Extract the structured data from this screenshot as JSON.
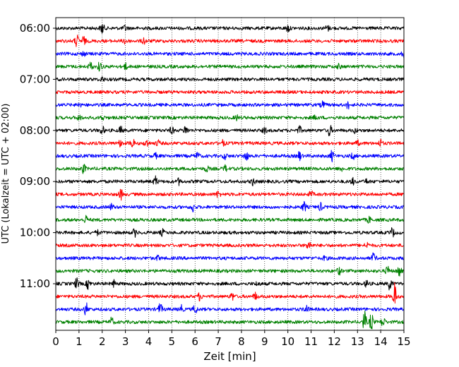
{
  "chart_data": {
    "type": "line",
    "title": "",
    "xlabel": "Zeit  [min]",
    "ylabel": "UTC (Lokalzeit = UTC + 02:00)",
    "xlim": [
      0,
      15
    ],
    "x_ticks": [
      "0",
      "1",
      "2",
      "3",
      "4",
      "5",
      "6",
      "7",
      "8",
      "9",
      "10",
      "11",
      "12",
      "13",
      "14",
      "15"
    ],
    "y_ticks": [
      "06:00",
      "07:00",
      "08:00",
      "09:00",
      "10:00",
      "11:00"
    ],
    "grid": "vertical-dotted",
    "trace_minutes": 15,
    "trace_colors": [
      "#000000",
      "#ff0000",
      "#0000ff",
      "#008000"
    ],
    "traces": [
      {
        "start": "06:00",
        "color": "#000000"
      },
      {
        "start": "06:15",
        "color": "#ff0000"
      },
      {
        "start": "06:30",
        "color": "#0000ff"
      },
      {
        "start": "06:45",
        "color": "#008000"
      },
      {
        "start": "07:00",
        "color": "#000000"
      },
      {
        "start": "07:15",
        "color": "#ff0000"
      },
      {
        "start": "07:30",
        "color": "#0000ff"
      },
      {
        "start": "07:45",
        "color": "#008000"
      },
      {
        "start": "08:00",
        "color": "#000000"
      },
      {
        "start": "08:15",
        "color": "#ff0000"
      },
      {
        "start": "08:30",
        "color": "#0000ff"
      },
      {
        "start": "08:45",
        "color": "#008000"
      },
      {
        "start": "09:00",
        "color": "#000000"
      },
      {
        "start": "09:15",
        "color": "#ff0000"
      },
      {
        "start": "09:30",
        "color": "#0000ff"
      },
      {
        "start": "09:45",
        "color": "#008000"
      },
      {
        "start": "10:00",
        "color": "#000000"
      },
      {
        "start": "10:15",
        "color": "#ff0000"
      },
      {
        "start": "10:30",
        "color": "#0000ff"
      },
      {
        "start": "10:45",
        "color": "#008000"
      },
      {
        "start": "11:00",
        "color": "#000000"
      },
      {
        "start": "11:15",
        "color": "#ff0000"
      },
      {
        "start": "11:30",
        "color": "#0000ff"
      },
      {
        "start": "11:45",
        "color": "#008000"
      }
    ]
  }
}
